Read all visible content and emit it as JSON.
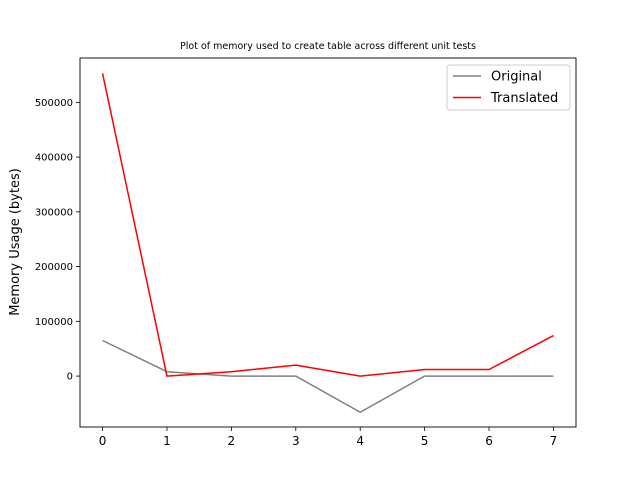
{
  "chart_data": {
    "type": "line",
    "title": "Plot of memory used to create table across different unit tests",
    "xlabel": "",
    "ylabel": "Memory Usage (bytes)",
    "x": [
      0,
      1,
      2,
      3,
      4,
      5,
      6,
      7
    ],
    "xlim": [
      -0.35,
      7.35
    ],
    "ylim": [
      -93000,
      581000
    ],
    "xticks": [
      "0",
      "1",
      "2",
      "3",
      "4",
      "5",
      "6",
      "7"
    ],
    "yticks": [
      0,
      100000,
      200000,
      300000,
      400000,
      500000
    ],
    "ytick_labels": [
      "0",
      "100000",
      "200000",
      "300000",
      "400000",
      "500000"
    ],
    "grid": false,
    "legend": {
      "placement": "top-right"
    },
    "series": [
      {
        "name": "Original",
        "color": "#808080",
        "values": [
          65000,
          8000,
          0,
          0,
          -66000,
          0,
          0,
          0
        ]
      },
      {
        "name": "Translated",
        "color": "#ff0000",
        "values": [
          553000,
          0,
          8000,
          20000,
          0,
          12000,
          12000,
          74000
        ]
      }
    ]
  }
}
